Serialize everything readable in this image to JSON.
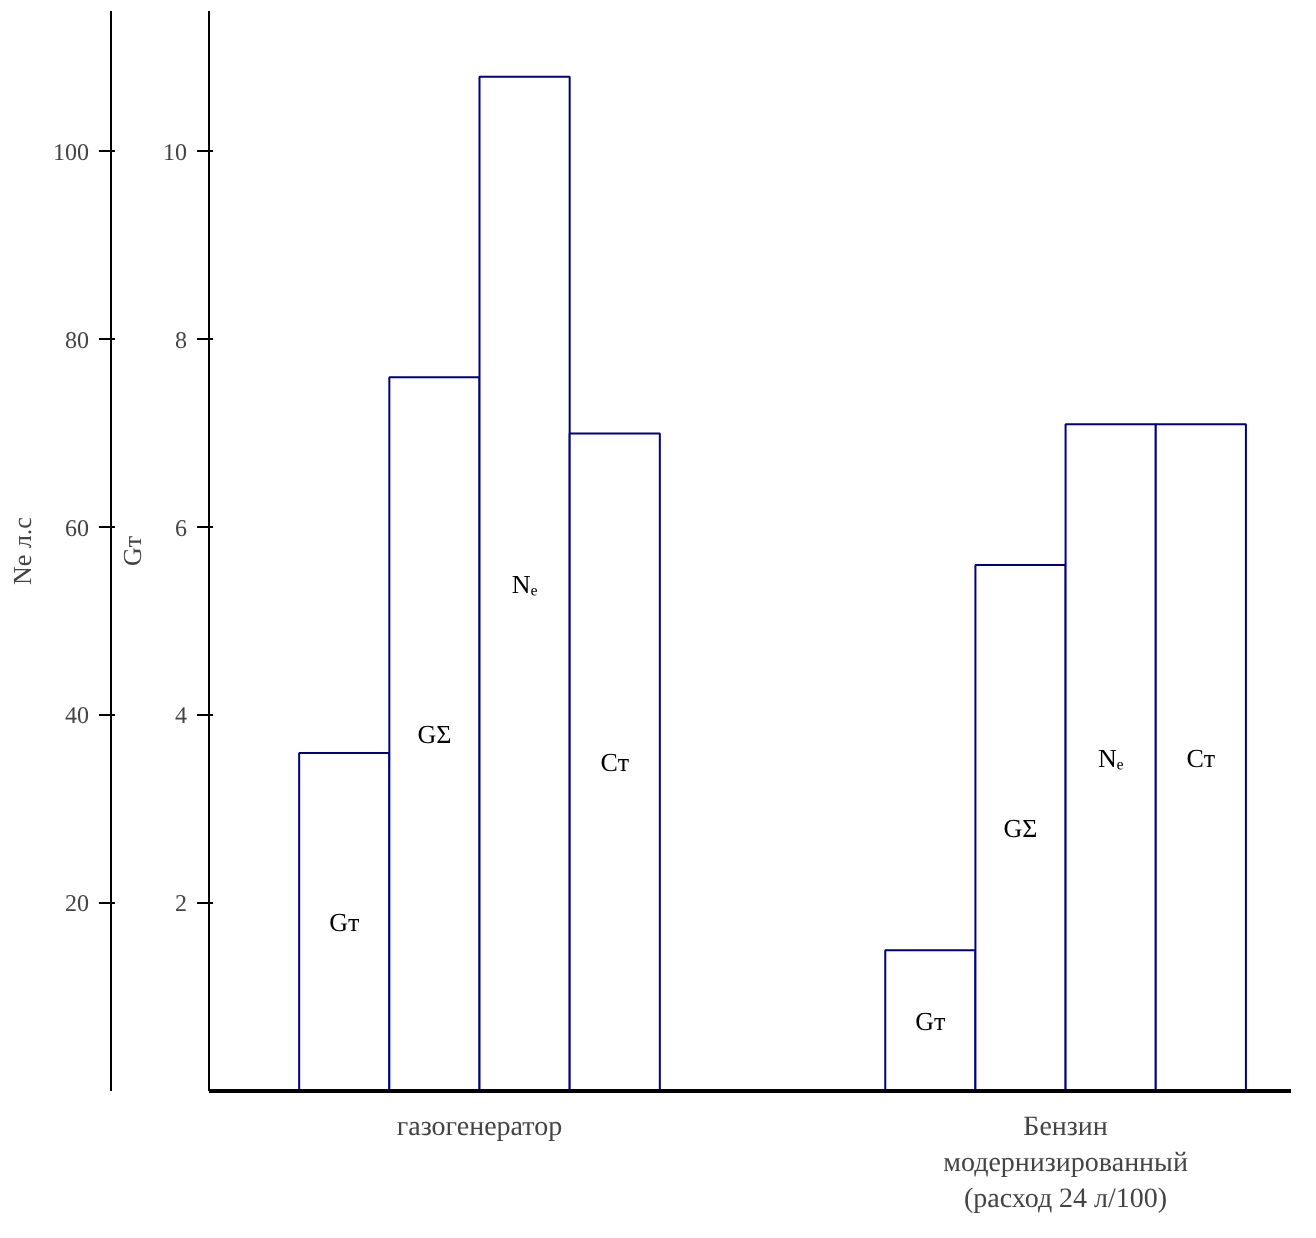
{
  "chart_data": {
    "type": "bar",
    "ylabel": "Gт",
    "y2label": "Ne л.с",
    "categories": [
      "газогенератор",
      "Бензин\nмодернизированный\n(расход 24 л/100)"
    ],
    "series": [
      {
        "name": "Gт",
        "color": "#ffffff",
        "values": [
          3.6,
          1.5
        ]
      },
      {
        "name": "GΣ",
        "color": "#ffffff",
        "values": [
          7.6,
          5.6
        ]
      },
      {
        "name": "Nₑ",
        "color": "#ffffff",
        "values": [
          108,
          71
        ],
        "axis": "y2"
      },
      {
        "name": "Cт",
        "color": "#ffffff",
        "values": [
          7.0,
          7.1
        ]
      }
    ],
    "ylim": [
      0,
      11.5
    ],
    "yticks": [
      2,
      4,
      6,
      8,
      10
    ],
    "y2lim": [
      0,
      115
    ],
    "y2ticks": [
      20,
      40,
      60,
      80,
      100
    ],
    "grid": false
  }
}
